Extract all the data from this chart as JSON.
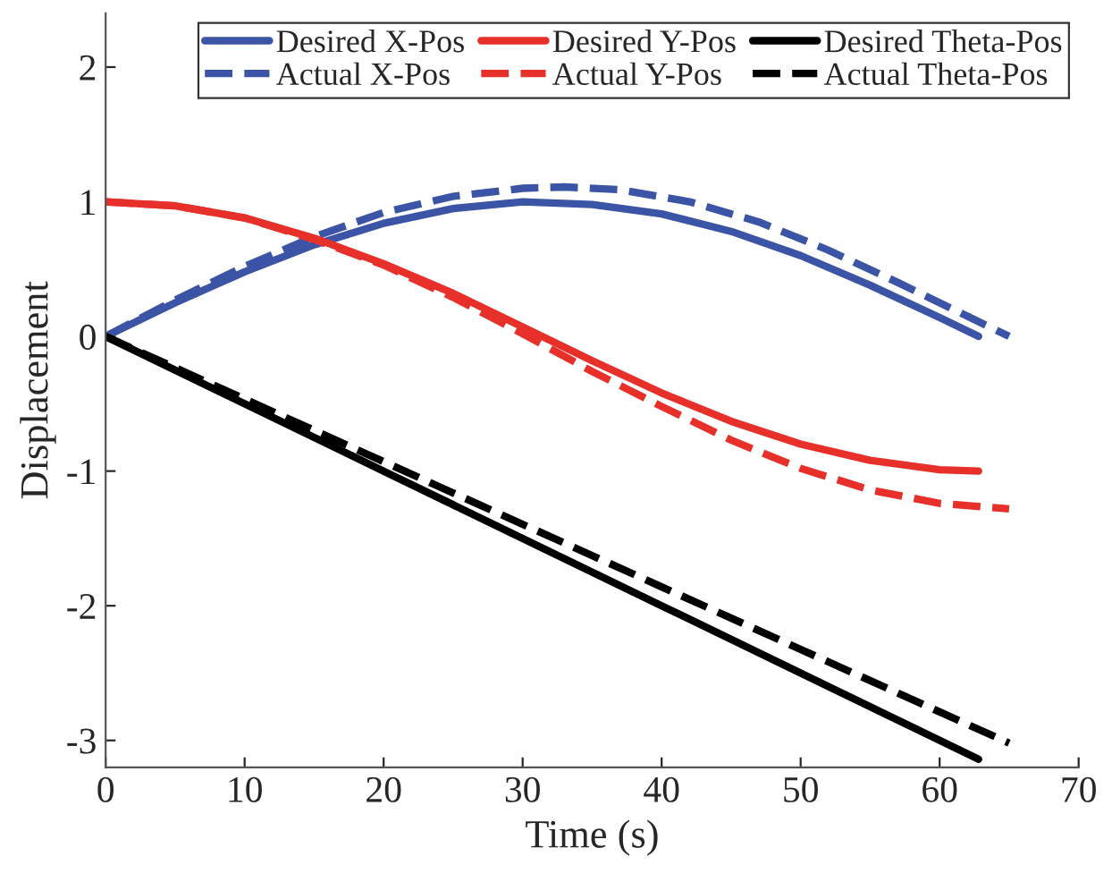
{
  "chart_data": {
    "type": "line",
    "xlabel": "Time (s)",
    "ylabel": "Displacement",
    "xlim": [
      0,
      70
    ],
    "xticks": [
      0,
      10,
      20,
      30,
      40,
      50,
      60,
      70
    ],
    "ylim": [
      -3.2,
      2.4
    ],
    "yticks": [
      -3,
      -2,
      -1,
      0,
      1,
      2
    ],
    "grid": false,
    "legend": "top right",
    "series": [
      {
        "name": "Desired X-Pos",
        "color": "#3b54a5",
        "line_style": "solid",
        "x": [
          0,
          5,
          10,
          15,
          20,
          25,
          30,
          35,
          40,
          45,
          50,
          55,
          60,
          62.8
        ],
        "values": [
          0,
          0.25,
          0.48,
          0.68,
          0.84,
          0.95,
          1.0,
          0.98,
          0.91,
          0.78,
          0.6,
          0.38,
          0.14,
          0
        ]
      },
      {
        "name": "Actual X-Pos",
        "color": "#3b54a5",
        "line_style": "dashed",
        "x": [
          0,
          5,
          10,
          15,
          20,
          25,
          30,
          33,
          37,
          42,
          47,
          52,
          57,
          62,
          65
        ],
        "values": [
          0,
          0.27,
          0.52,
          0.74,
          0.92,
          1.04,
          1.1,
          1.11,
          1.09,
          1.0,
          0.85,
          0.64,
          0.4,
          0.15,
          0
        ]
      },
      {
        "name": "Desired Y-Pos",
        "color": "#e8302a",
        "line_style": "solid",
        "x": [
          0,
          5,
          10,
          15,
          20,
          25,
          30,
          35,
          40,
          45,
          50,
          55,
          60,
          62.8
        ],
        "values": [
          1,
          0.97,
          0.88,
          0.73,
          0.54,
          0.32,
          0.07,
          -0.18,
          -0.42,
          -0.63,
          -0.8,
          -0.92,
          -0.99,
          -1.0
        ]
      },
      {
        "name": "Actual Y-Pos",
        "color": "#e8302a",
        "line_style": "dashed",
        "x": [
          0,
          5,
          10,
          15,
          20,
          25,
          30,
          35,
          40,
          45,
          50,
          55,
          60,
          65
        ],
        "values": [
          1,
          0.97,
          0.88,
          0.72,
          0.53,
          0.29,
          0.02,
          -0.26,
          -0.52,
          -0.77,
          -0.98,
          -1.14,
          -1.24,
          -1.28
        ]
      },
      {
        "name": "Desired Theta-Pos",
        "color": "#000000",
        "line_style": "solid",
        "x": [
          0,
          20,
          40,
          62.8
        ],
        "values": [
          0,
          -1.0,
          -2.0,
          -3.14
        ]
      },
      {
        "name": "Actual Theta-Pos",
        "color": "#000000",
        "line_style": "dashed",
        "x": [
          0,
          20,
          40,
          65
        ],
        "values": [
          0,
          -0.93,
          -1.86,
          -3.02
        ]
      }
    ]
  }
}
